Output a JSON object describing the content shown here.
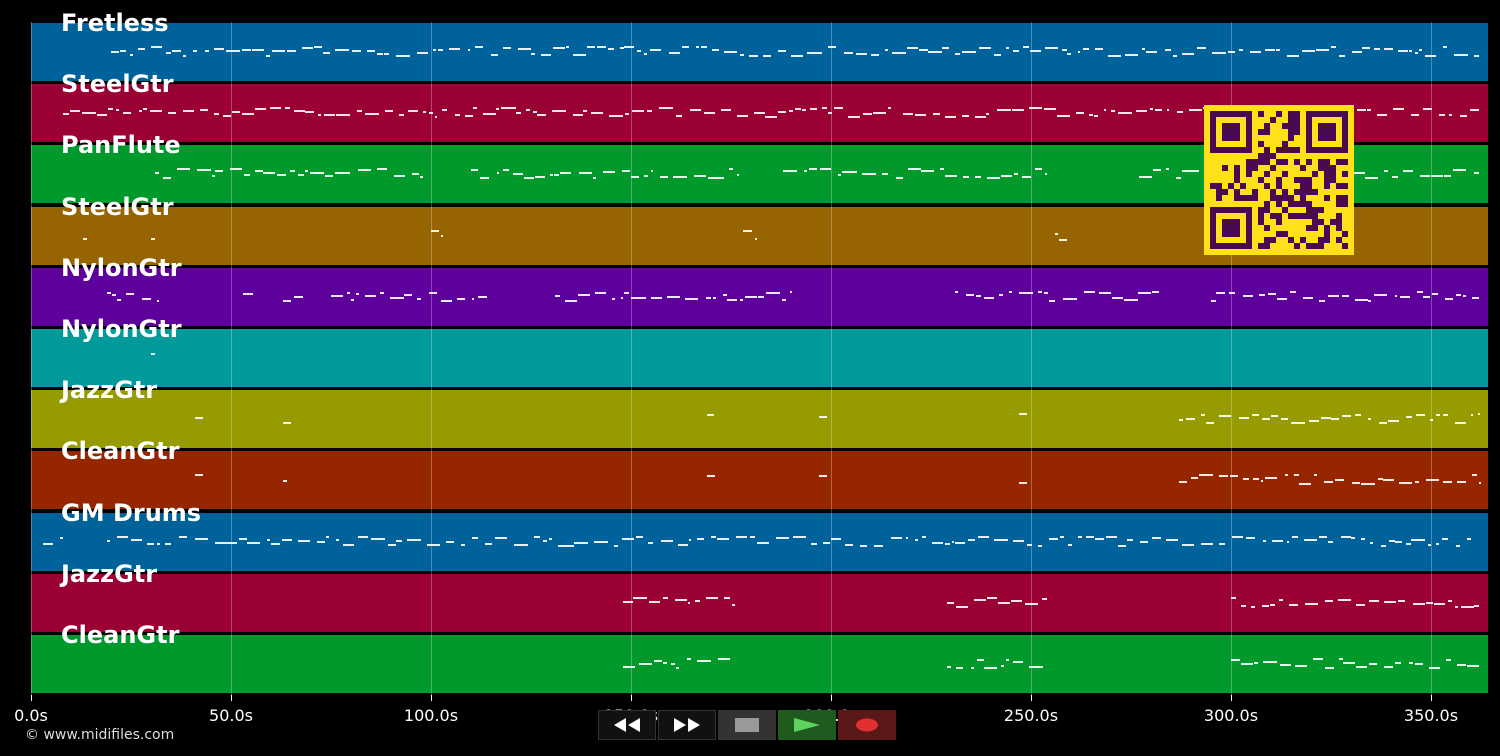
{
  "timeline": {
    "ticks": [
      "0.0s",
      "50.0s",
      "100.0s",
      "150.0s",
      "200.0s",
      "250.0s",
      "300.0s",
      "350.0s"
    ],
    "tick_seconds": [
      0,
      50,
      100,
      150,
      200,
      250,
      300,
      350
    ],
    "max_seconds": 364
  },
  "tracks": [
    {
      "label": "Fretless",
      "color": "#00629b"
    },
    {
      "label": "SteelGtr",
      "color": "#9b0033"
    },
    {
      "label": "PanFlute",
      "color": "#009a2c"
    },
    {
      "label": "SteelGtr",
      "color": "#966400"
    },
    {
      "label": "NylonGtr",
      "color": "#5e009b"
    },
    {
      "label": "NylonGtr",
      "color": "#009a9b"
    },
    {
      "label": "JazzGtr",
      "color": "#969b00"
    },
    {
      "label": "CleanGtr",
      "color": "#962600"
    },
    {
      "label": "GM Drums",
      "color": "#00629b"
    },
    {
      "label": "JazzGtr",
      "color": "#9b0033"
    },
    {
      "label": "CleanGtr",
      "color": "#009a2c"
    }
  ],
  "copyright": "© www.midifiles.com",
  "transport": {
    "rewind_icon": "rewind-icon",
    "forward_icon": "fast-forward-icon",
    "stop_icon": "stop-icon",
    "play_icon": "play-icon",
    "record_icon": "record-icon"
  },
  "qr_icon": "qr-code-icon"
}
